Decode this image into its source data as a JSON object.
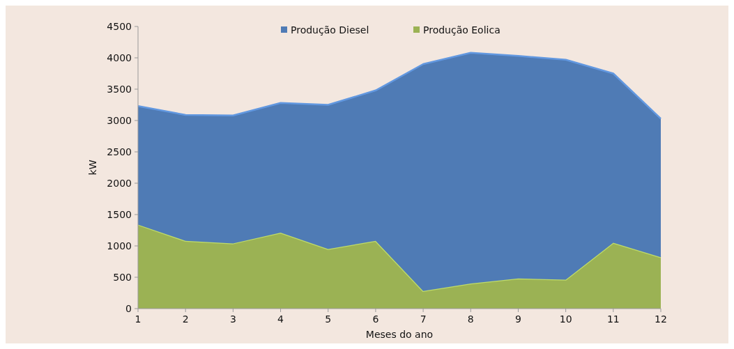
{
  "chart_data": {
    "type": "area",
    "stacked": true,
    "xlabel": "Meses do ano",
    "ylabel": "kW",
    "x": [
      1,
      2,
      3,
      4,
      5,
      6,
      7,
      8,
      9,
      10,
      11,
      12
    ],
    "xlim": [
      1,
      12
    ],
    "xticks": [
      1,
      2,
      3,
      4,
      5,
      6,
      7,
      8,
      9,
      10,
      11,
      12
    ],
    "ylim": [
      0,
      4500
    ],
    "yticks": [
      0,
      500,
      1000,
      1500,
      2000,
      2500,
      3000,
      3500,
      4000,
      4500
    ],
    "grid": false,
    "legend": "top",
    "series": [
      {
        "name": "Produção Eolica",
        "color": "#9bb254",
        "values": [
          1340,
          1080,
          1040,
          1210,
          950,
          1080,
          280,
          400,
          480,
          460,
          1050,
          820
        ]
      },
      {
        "name": "Produção Diesel",
        "color": "#4f7bb5",
        "values": [
          1890,
          2010,
          2040,
          2070,
          2300,
          2400,
          3620,
          3680,
          3550,
          3510,
          2700,
          2210
        ]
      }
    ]
  }
}
